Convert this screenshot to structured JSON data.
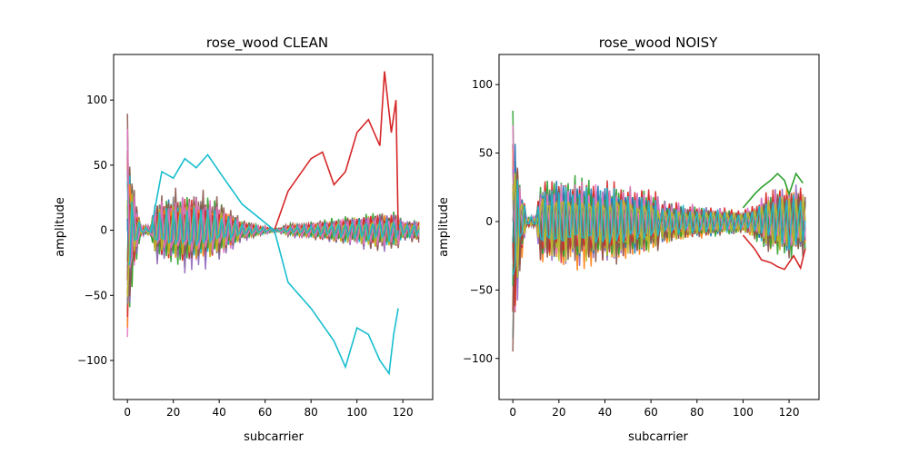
{
  "chart_data": [
    {
      "type": "line",
      "title": "rose_wood CLEAN",
      "xlabel": "subcarrier",
      "ylabel": "amplitude",
      "xlim": [
        -6,
        133
      ],
      "ylim": [
        -130,
        135
      ],
      "xticks": [
        0,
        20,
        40,
        60,
        80,
        100,
        120
      ],
      "yticks": [
        -100,
        -50,
        0,
        50,
        100
      ],
      "grid": false,
      "legend": "none",
      "colors": [
        "#1f77b4",
        "#ff7f0e",
        "#2ca02c",
        "#d62728",
        "#9467bd",
        "#8c564b",
        "#e377c2",
        "#7f7f7f",
        "#bcbd22",
        "#17becf"
      ],
      "series_count": 30,
      "subcarriers": 128,
      "envelope": {
        "x": [
          0,
          3,
          6,
          10,
          12,
          20,
          30,
          40,
          50,
          60,
          64,
          66,
          70,
          80,
          90,
          100,
          110,
          117,
          120,
          127
        ],
        "high": [
          110,
          40,
          5,
          5,
          28,
          34,
          36,
          28,
          10,
          4,
          2,
          2,
          6,
          8,
          12,
          15,
          18,
          18,
          10,
          10
        ],
        "low": [
          -120,
          -40,
          -5,
          -5,
          -28,
          -34,
          -36,
          -28,
          -10,
          -4,
          -2,
          -2,
          -6,
          -8,
          -12,
          -15,
          -18,
          -18,
          -10,
          -10
        ]
      },
      "outliers": [
        {
          "color": "#d62728",
          "x": [
            64,
            70,
            80,
            85,
            90,
            95,
            100,
            105,
            110,
            112,
            115,
            117,
            118
          ],
          "y": [
            0,
            30,
            55,
            60,
            35,
            45,
            75,
            85,
            65,
            122,
            75,
            100,
            0
          ]
        },
        {
          "color": "#17becf",
          "x": [
            10,
            15,
            20,
            25,
            30,
            35,
            40,
            50,
            64,
            70,
            80,
            90,
            95,
            100,
            105,
            110,
            114,
            116,
            118
          ],
          "y": [
            -2,
            45,
            40,
            55,
            48,
            58,
            45,
            20,
            0,
            -40,
            -60,
            -85,
            -105,
            -75,
            -80,
            -100,
            -110,
            -80,
            -60
          ]
        }
      ]
    },
    {
      "type": "line",
      "title": "rose_wood NOISY",
      "xlabel": "subcarrier",
      "ylabel": "amplitude",
      "xlim": [
        -6,
        133
      ],
      "ylim": [
        -130,
        122
      ],
      "xticks": [
        0,
        20,
        40,
        60,
        80,
        100,
        120
      ],
      "yticks": [
        -100,
        -50,
        0,
        50,
        100
      ],
      "grid": false,
      "legend": "none",
      "colors": [
        "#1f77b4",
        "#ff7f0e",
        "#2ca02c",
        "#d62728",
        "#9467bd",
        "#8c564b",
        "#e377c2",
        "#7f7f7f",
        "#bcbd22",
        "#17becf"
      ],
      "series_count": 30,
      "subcarriers": 128,
      "envelope": {
        "x": [
          0,
          3,
          6,
          10,
          12,
          20,
          30,
          40,
          50,
          63,
          64,
          65,
          70,
          80,
          90,
          100,
          105,
          110,
          118,
          127
        ],
        "high": [
          110,
          40,
          5,
          5,
          36,
          38,
          37,
          35,
          32,
          25,
          0,
          20,
          18,
          15,
          12,
          10,
          15,
          25,
          30,
          30
        ],
        "low": [
          -120,
          -40,
          -5,
          -5,
          -36,
          -38,
          -37,
          -35,
          -32,
          -25,
          0,
          -20,
          -18,
          -15,
          -12,
          -10,
          -15,
          -25,
          -30,
          -30
        ]
      },
      "outliers": [
        {
          "color": "#2ca02c",
          "x": [
            100,
            105,
            108,
            112,
            115,
            118,
            120,
            123,
            126
          ],
          "y": [
            10,
            20,
            25,
            30,
            35,
            30,
            20,
            35,
            28
          ]
        },
        {
          "color": "#d62728",
          "x": [
            100,
            105,
            108,
            112,
            115,
            118,
            122,
            125,
            127
          ],
          "y": [
            -10,
            -20,
            -28,
            -30,
            -33,
            -35,
            -25,
            -34,
            -20
          ]
        }
      ]
    }
  ]
}
